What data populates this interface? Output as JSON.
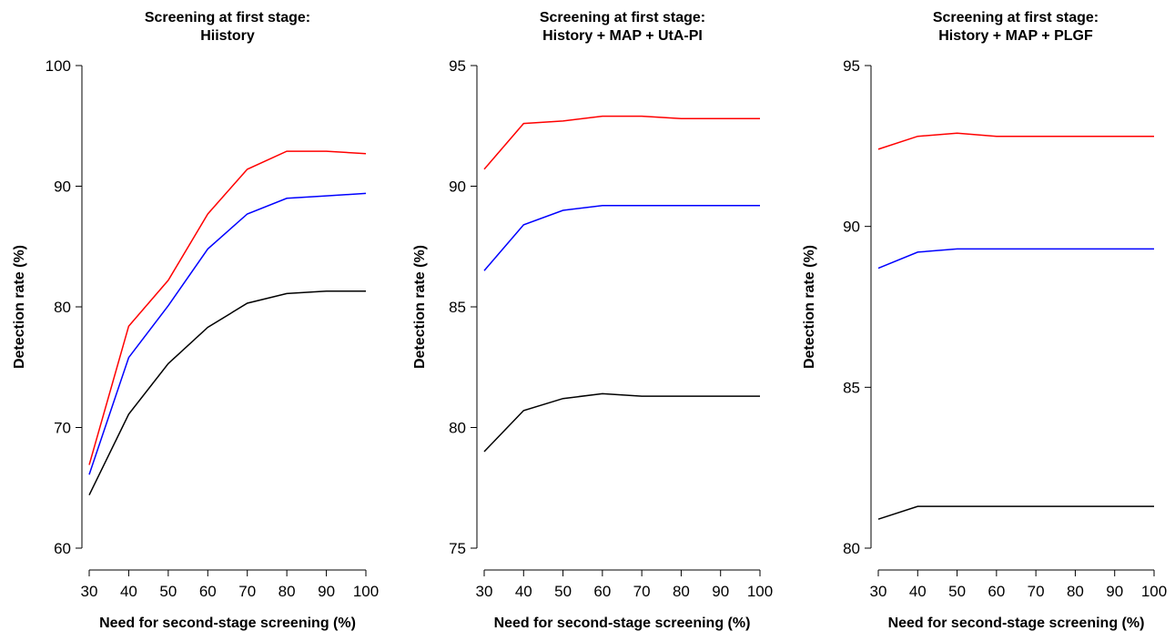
{
  "chart_data": [
    {
      "type": "line",
      "title_lines": [
        "Screening at first stage:",
        "Hiistory"
      ],
      "xlabel": "Need for second-stage screening (%)",
      "ylabel": "Detection rate (%)",
      "x": [
        30,
        40,
        50,
        60,
        70,
        80,
        90,
        100
      ],
      "xticks": [
        "30",
        "40",
        "50",
        "60",
        "70",
        "80",
        "90",
        "100"
      ],
      "xlim": [
        30,
        100
      ],
      "yticks": [
        "60",
        "70",
        "80",
        "90",
        "100"
      ],
      "ylim": [
        60,
        100
      ],
      "series": [
        {
          "color": "#ff0000",
          "values": [
            66.9,
            78.4,
            82.2,
            87.7,
            91.4,
            92.9,
            92.9,
            92.7
          ]
        },
        {
          "color": "#0000ff",
          "values": [
            66.1,
            75.8,
            80.1,
            84.8,
            87.7,
            89.0,
            89.2,
            89.4
          ]
        },
        {
          "color": "#000000",
          "values": [
            64.4,
            71.1,
            75.3,
            78.3,
            80.3,
            81.1,
            81.3,
            81.3
          ]
        }
      ]
    },
    {
      "type": "line",
      "title_lines": [
        "Screening at first stage:",
        "History + MAP + UtA-PI"
      ],
      "xlabel": "Need for second-stage screening (%)",
      "ylabel": "Detection rate (%)",
      "x": [
        30,
        40,
        50,
        60,
        70,
        80,
        90,
        100
      ],
      "xticks": [
        "30",
        "40",
        "50",
        "60",
        "70",
        "80",
        "90",
        "100"
      ],
      "xlim": [
        30,
        100
      ],
      "yticks": [
        "75",
        "80",
        "85",
        "90",
        "95"
      ],
      "ylim": [
        75,
        95
      ],
      "series": [
        {
          "color": "#ff0000",
          "values": [
            90.7,
            92.6,
            92.7,
            92.9,
            92.9,
            92.8,
            92.8,
            92.8
          ]
        },
        {
          "color": "#0000ff",
          "values": [
            86.5,
            88.4,
            89.0,
            89.2,
            89.2,
            89.2,
            89.2,
            89.2
          ]
        },
        {
          "color": "#000000",
          "values": [
            79.0,
            80.7,
            81.2,
            81.4,
            81.3,
            81.3,
            81.3,
            81.3
          ]
        }
      ]
    },
    {
      "type": "line",
      "title_lines": [
        "Screening at first stage:",
        "History + MAP + PLGF"
      ],
      "xlabel": "Need for second-stage screening (%)",
      "ylabel": "Detection rate (%)",
      "x": [
        30,
        40,
        50,
        60,
        70,
        80,
        90,
        100
      ],
      "xticks": [
        "30",
        "40",
        "50",
        "60",
        "70",
        "80",
        "90",
        "100"
      ],
      "xlim": [
        30,
        100
      ],
      "yticks": [
        "80",
        "85",
        "90",
        "95"
      ],
      "ylim": [
        80,
        95
      ],
      "series": [
        {
          "color": "#ff0000",
          "values": [
            92.4,
            92.8,
            92.9,
            92.8,
            92.8,
            92.8,
            92.8,
            92.8
          ]
        },
        {
          "color": "#0000ff",
          "values": [
            88.7,
            89.2,
            89.3,
            89.3,
            89.3,
            89.3,
            89.3,
            89.3
          ]
        },
        {
          "color": "#000000",
          "values": [
            80.9,
            81.3,
            81.3,
            81.3,
            81.3,
            81.3,
            81.3,
            81.3
          ]
        }
      ]
    }
  ]
}
